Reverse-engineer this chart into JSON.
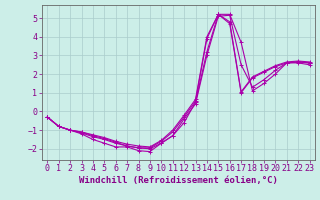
{
  "background_color": "#cceee8",
  "grid_color": "#aacccc",
  "line_color": "#aa00aa",
  "marker": "+",
  "markersize": 3,
  "linewidth": 0.8,
  "xlim": [
    -0.5,
    23.5
  ],
  "ylim": [
    -2.6,
    5.7
  ],
  "yticks": [
    -2,
    -1,
    0,
    1,
    2,
    3,
    4,
    5
  ],
  "xticks": [
    0,
    1,
    2,
    3,
    4,
    5,
    6,
    7,
    8,
    9,
    10,
    11,
    12,
    13,
    14,
    15,
    16,
    17,
    18,
    19,
    20,
    21,
    22,
    23
  ],
  "xlabel": "Windchill (Refroidissement éolien,°C)",
  "xlabel_color": "#880088",
  "xlabel_fontsize": 6.5,
  "tick_fontsize": 6,
  "tick_color": "#880088",
  "spine_color": "#666666",
  "series_x": [
    0,
    1,
    2,
    3,
    4,
    5,
    6,
    7,
    8,
    9,
    10,
    11,
    12,
    13,
    14,
    15,
    16,
    17,
    18,
    19,
    20,
    21,
    22,
    23
  ],
  "series": [
    [
      -0.3,
      -0.8,
      -1.0,
      -1.2,
      -1.5,
      -1.7,
      -1.9,
      -1.9,
      -2.1,
      -2.15,
      -1.7,
      -1.3,
      -0.6,
      0.5,
      3.2,
      5.2,
      5.2,
      3.7,
      1.1,
      1.5,
      2.0,
      2.6,
      2.6,
      2.5
    ],
    [
      -0.3,
      -0.8,
      -1.0,
      -1.15,
      -1.35,
      -1.5,
      -1.7,
      -1.85,
      -1.95,
      -1.95,
      -1.6,
      -1.1,
      -0.3,
      0.55,
      3.9,
      5.2,
      4.7,
      1.0,
      1.8,
      2.1,
      2.4,
      2.6,
      2.65,
      2.6
    ],
    [
      -0.3,
      -0.8,
      -1.0,
      -1.1,
      -1.3,
      -1.45,
      -1.65,
      -1.85,
      -1.95,
      -2.0,
      -1.7,
      -1.3,
      -0.4,
      0.4,
      3.0,
      5.1,
      5.15,
      2.5,
      1.3,
      1.7,
      2.2,
      2.6,
      2.65,
      2.6
    ],
    [
      -0.3,
      -0.8,
      -1.0,
      -1.1,
      -1.25,
      -1.4,
      -1.6,
      -1.75,
      -1.85,
      -1.9,
      -1.55,
      -1.0,
      -0.2,
      0.65,
      4.0,
      5.2,
      4.8,
      1.05,
      1.85,
      2.15,
      2.45,
      2.65,
      2.7,
      2.65
    ]
  ]
}
